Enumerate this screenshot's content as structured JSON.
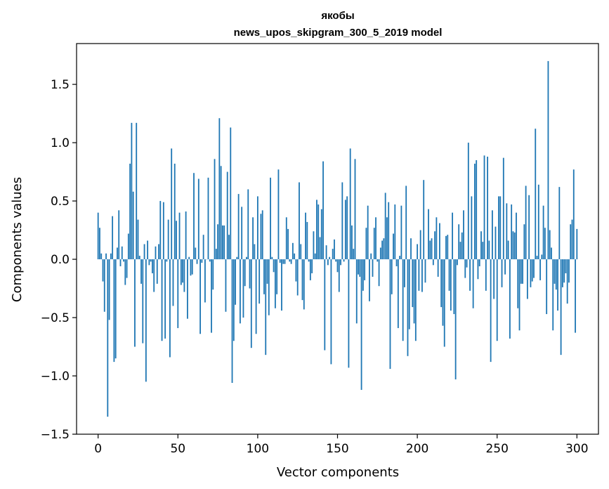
{
  "chart_data": {
    "type": "bar",
    "title": "якобы",
    "subtitle": "news_upos_skipgram_300_5_2019 model",
    "xlabel": "Vector components",
    "ylabel": "Components values",
    "xlim": [
      -13.5,
      313.5
    ],
    "ylim": [
      -1.5,
      1.85
    ],
    "xticks": [
      0,
      50,
      100,
      150,
      200,
      250,
      300
    ],
    "yticks": [
      -1.5,
      -1.0,
      -0.5,
      0.0,
      0.5,
      1.0,
      1.5
    ],
    "xtick_labels": [
      "0",
      "50",
      "100",
      "150",
      "200",
      "250",
      "300"
    ],
    "ytick_labels": [
      "−1.5",
      "−1.0",
      "−0.5",
      "0.0",
      "0.5",
      "1.0",
      "1.5"
    ],
    "bar_color": "#1f77b4",
    "grid": false,
    "values": [
      0.4,
      0.27,
      0.05,
      -0.19,
      -0.45,
      0.05,
      -1.35,
      -0.52,
      0.05,
      0.37,
      -0.88,
      -0.85,
      0.1,
      0.42,
      -0.06,
      0.11,
      -0.02,
      -0.22,
      -0.16,
      0.22,
      0.82,
      1.17,
      0.58,
      -0.75,
      1.17,
      0.34,
      0.03,
      -0.21,
      -0.72,
      0.13,
      -1.05,
      0.16,
      -0.05,
      -0.02,
      -0.12,
      -0.28,
      0.11,
      -0.21,
      0.13,
      0.5,
      -0.7,
      0.49,
      -0.68,
      -0.02,
      0.34,
      -0.84,
      0.95,
      -0.4,
      0.82,
      0.33,
      -0.59,
      0.4,
      -0.22,
      -0.2,
      -0.28,
      0.41,
      -0.51,
      0.02,
      -0.14,
      -0.13,
      0.74,
      0.1,
      -0.04,
      0.69,
      -0.64,
      -0.03,
      0.21,
      -0.37,
      0.0,
      0.7,
      -0.02,
      -0.63,
      -0.26,
      0.86,
      0.09,
      0.3,
      1.21,
      0.8,
      0.29,
      0.29,
      -0.45,
      0.75,
      0.21,
      1.13,
      -1.06,
      -0.7,
      -0.39,
      0.02,
      0.56,
      -0.55,
      0.45,
      -0.5,
      -0.23,
      0.02,
      0.6,
      -0.25,
      -0.76,
      0.36,
      0.13,
      -0.64,
      0.54,
      -0.38,
      0.39,
      0.42,
      -0.3,
      -0.82,
      -0.21,
      -0.48,
      0.7,
      0.02,
      -0.11,
      -0.42,
      -0.3,
      0.77,
      -0.03,
      -0.44,
      -0.04,
      -0.04,
      0.36,
      0.26,
      -0.02,
      -0.04,
      0.14,
      0.05,
      -0.19,
      -0.31,
      0.66,
      0.13,
      -0.35,
      -0.43,
      0.4,
      0.32,
      -0.02,
      -0.18,
      -0.12,
      0.24,
      0.05,
      0.51,
      0.47,
      0.19,
      0.43,
      0.84,
      -0.78,
      0.12,
      -0.05,
      0.02,
      -0.9,
      0.09,
      0.17,
      -0.02,
      -0.11,
      -0.28,
      -0.05,
      0.66,
      -0.02,
      0.51,
      0.54,
      -0.93,
      0.95,
      0.29,
      0.09,
      0.86,
      -0.55,
      -0.13,
      -0.15,
      -1.12,
      -0.27,
      -0.18,
      0.27,
      0.46,
      -0.36,
      0.05,
      -0.15,
      0.27,
      0.36,
      -0.02,
      -0.23,
      0.1,
      0.16,
      0.18,
      0.57,
      0.36,
      0.49,
      -0.94,
      -0.3,
      0.22,
      0.47,
      -0.06,
      -0.59,
      0.03,
      0.46,
      -0.7,
      -0.24,
      0.63,
      -0.83,
      -0.6,
      0.18,
      -0.41,
      -0.55,
      -0.7,
      0.13,
      -0.27,
      0.25,
      -0.28,
      0.68,
      -0.2,
      0.0,
      0.43,
      0.16,
      0.18,
      -0.05,
      0.24,
      0.36,
      -0.15,
      0.31,
      -0.41,
      -0.57,
      -0.75,
      0.2,
      0.21,
      -0.27,
      -0.44,
      0.4,
      -0.47,
      -1.03,
      -0.05,
      0.3,
      0.15,
      0.23,
      0.42,
      -0.16,
      -0.07,
      1.0,
      -0.27,
      0.54,
      -0.42,
      0.82,
      0.85,
      -0.17,
      -0.06,
      0.24,
      0.15,
      0.89,
      -0.27,
      0.88,
      0.16,
      -0.88,
      0.42,
      -0.34,
      0.28,
      -0.7,
      0.54,
      0.54,
      -0.24,
      0.87,
      -0.13,
      0.48,
      0.16,
      -0.68,
      0.47,
      0.24,
      0.23,
      0.4,
      -0.42,
      -0.61,
      -0.21,
      -0.21,
      0.3,
      0.63,
      -0.34,
      0.55,
      -0.24,
      -0.19,
      -0.16,
      1.12,
      0.03,
      0.64,
      -0.18,
      0.04,
      0.46,
      0.27,
      -0.47,
      1.7,
      0.25,
      0.1,
      -0.61,
      -0.21,
      -0.26,
      -0.44,
      0.62,
      -0.82,
      -0.24,
      -0.2,
      -0.12,
      -0.38,
      -0.2,
      0.3,
      0.34,
      0.77,
      -0.63,
      0.26
    ]
  }
}
